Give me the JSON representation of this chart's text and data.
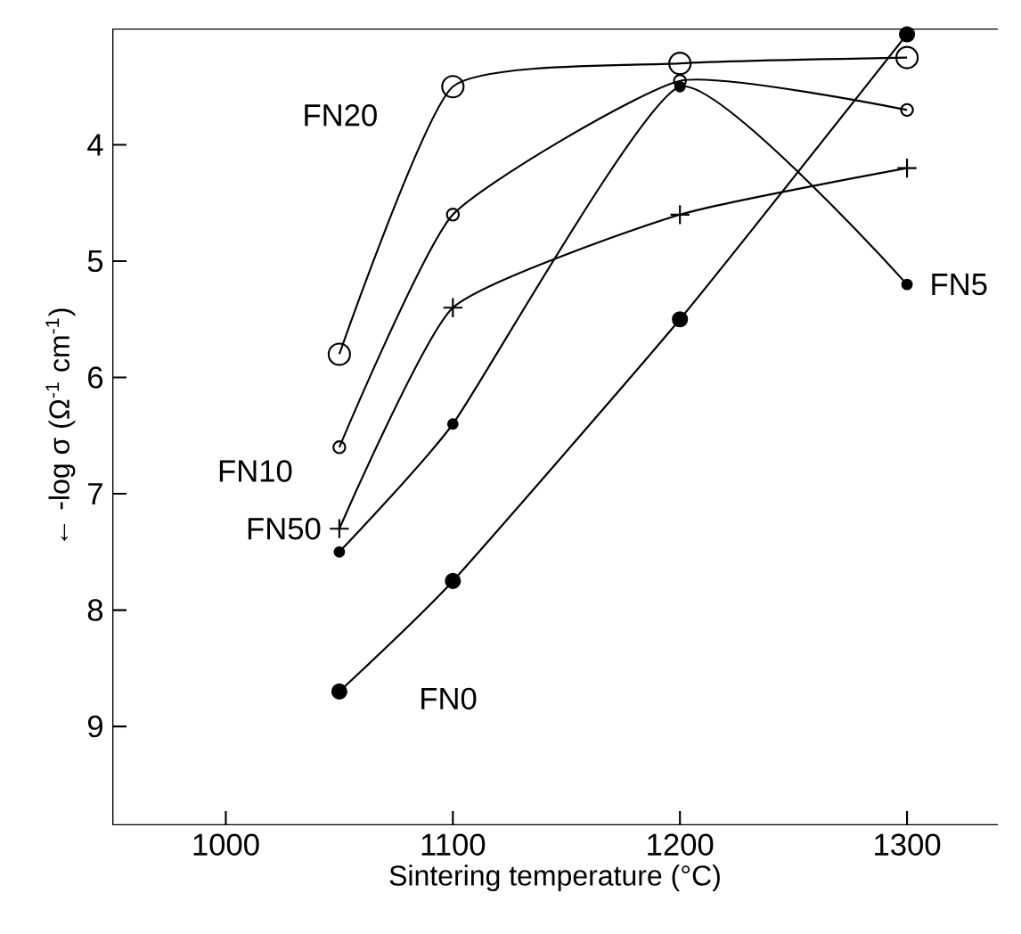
{
  "chart_data": {
    "type": "line",
    "xlabel": "Sintering temperature (°C)",
    "ylabel": "← -log σ (Ω$^{-1}$ cm$^{-1}$)",
    "x": [
      1050,
      1100,
      1200,
      1300
    ],
    "series": [
      {
        "name": "FN20",
        "color": "#000000",
        "marker": "circle",
        "values": [
          5.8,
          3.5,
          3.3,
          3.25
        ]
      },
      {
        "name": "FN10",
        "color": "#000000",
        "marker": "circle",
        "values": [
          6.6,
          4.6,
          3.45,
          3.7
        ]
      },
      {
        "name": "FN5",
        "color": "#000000",
        "marker": "circle",
        "values": [
          7.5,
          6.4,
          3.5,
          5.2
        ]
      },
      {
        "name": "FN50",
        "color": "#000000",
        "marker": "cross",
        "values": [
          7.3,
          5.4,
          4.6,
          4.2
        ]
      },
      {
        "name": "FN0",
        "color": "#000000",
        "marker": "circle",
        "values": [
          8.7,
          7.75,
          5.5,
          3.05
        ]
      }
    ],
    "xlim": [
      950,
      1340
    ],
    "ylim": [
      9.85,
      3
    ],
    "xticks": [
      1000,
      1100,
      1200,
      1300
    ],
    "yticks": [
      4,
      5,
      6,
      7,
      8,
      9
    ],
    "grid": false,
    "line_style": "solid"
  }
}
